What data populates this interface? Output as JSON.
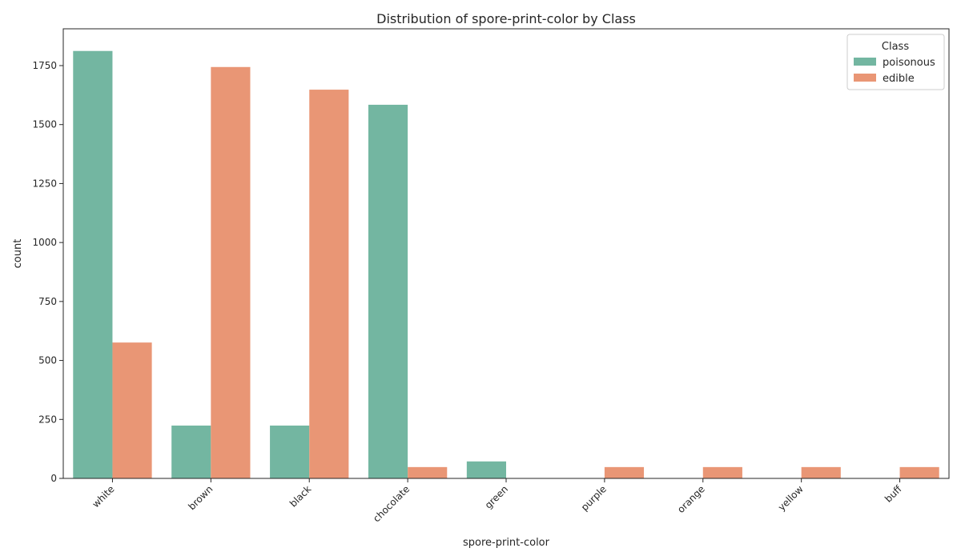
{
  "chart_data": {
    "type": "bar",
    "title": "Distribution of spore-print-color by Class",
    "xlabel": "spore-print-color",
    "ylabel": "count",
    "categories": [
      "white",
      "brown",
      "black",
      "chocolate",
      "green",
      "purple",
      "orange",
      "yellow",
      "buff"
    ],
    "series": [
      {
        "name": "poisonous",
        "color": "#73b6a1",
        "values": [
          1812,
          224,
          224,
          1584,
          72,
          0,
          0,
          0,
          0
        ]
      },
      {
        "name": "edible",
        "color": "#e99675",
        "values": [
          576,
          1744,
          1648,
          48,
          0,
          48,
          48,
          48,
          48
        ]
      }
    ],
    "ylim": [
      0,
      1906
    ],
    "yticks": [
      0,
      250,
      500,
      750,
      1000,
      1250,
      1500,
      1750
    ],
    "grid": false,
    "legend": {
      "title": "Class",
      "position": "top-right"
    }
  }
}
